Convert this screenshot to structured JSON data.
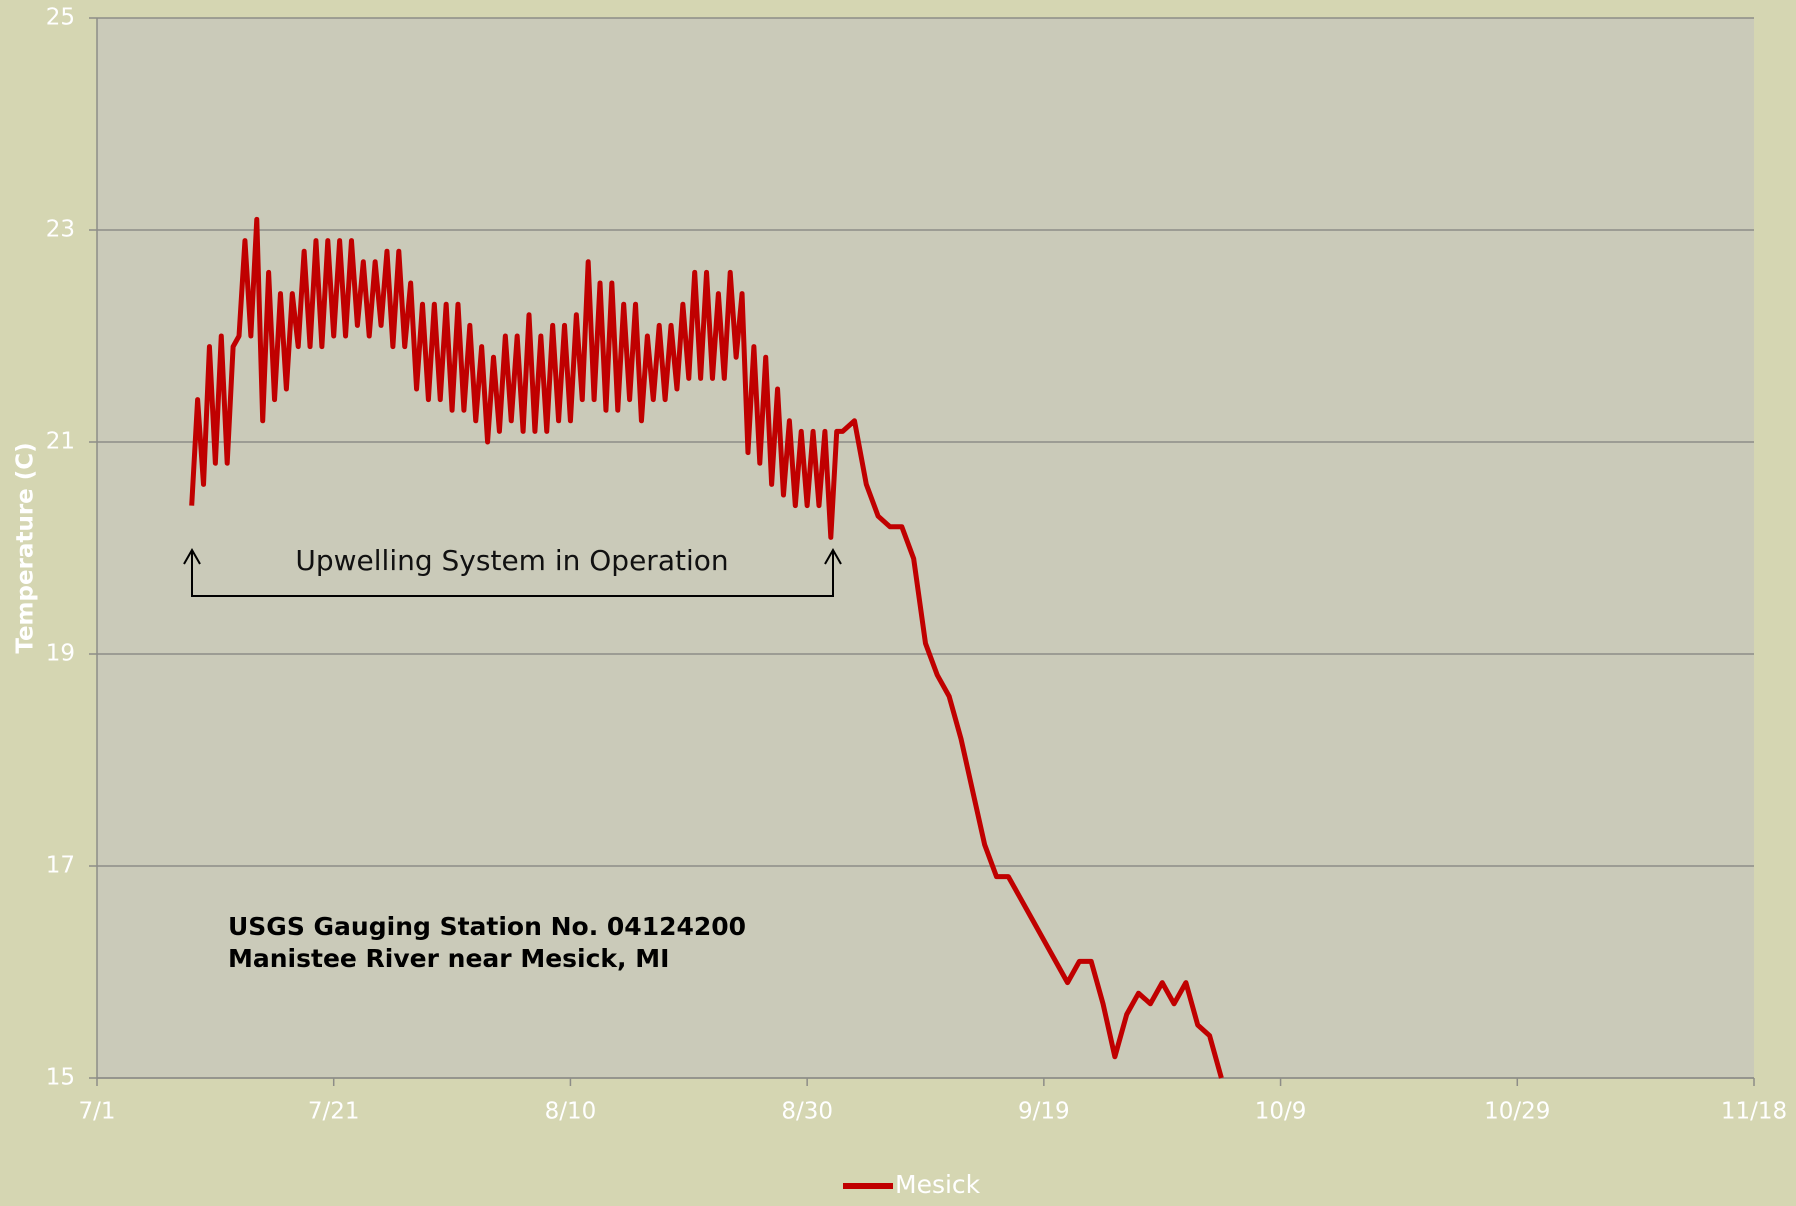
{
  "chart_data": {
    "type": "line",
    "y_label": "Temperature (C)",
    "annotations": [
      "Upwelling System in Operation",
      "USGS Gauging Station No. 04124200",
      "Manistee River near Mesick, MI"
    ],
    "xlim": [
      0,
      140
    ],
    "xticks": [
      {
        "value": 0,
        "label": "7/1"
      },
      {
        "value": 20,
        "label": "7/21"
      },
      {
        "value": 40,
        "label": "8/10"
      },
      {
        "value": 60,
        "label": "8/30"
      },
      {
        "value": 80,
        "label": "9/19"
      },
      {
        "value": 100,
        "label": "10/9"
      },
      {
        "value": 120,
        "label": "10/29"
      },
      {
        "value": 140,
        "label": "11/18"
      }
    ],
    "ylim": [
      15,
      25
    ],
    "yticks": [
      15,
      17,
      19,
      21,
      23,
      25
    ],
    "grid": true,
    "legend": "bottom",
    "x": [
      8,
      8.5,
      9,
      9.5,
      10,
      10.5,
      11,
      11.5,
      12,
      12.5,
      13,
      13.5,
      14,
      14.5,
      15,
      15.5,
      16,
      16.5,
      17,
      17.5,
      18,
      18.5,
      19,
      19.5,
      20,
      20.5,
      21,
      21.5,
      22,
      22.5,
      23,
      23.5,
      24,
      24.5,
      25,
      25.5,
      26,
      26.5,
      27,
      27.5,
      28,
      28.5,
      29,
      29.5,
      30,
      30.5,
      31,
      31.5,
      32,
      32.5,
      33,
      33.5,
      34,
      34.5,
      35,
      35.5,
      36,
      36.5,
      37,
      37.5,
      38,
      38.5,
      39,
      39.5,
      40,
      40.5,
      41,
      41.5,
      42,
      42.5,
      43,
      43.5,
      44,
      44.5,
      45,
      45.5,
      46,
      46.5,
      47,
      47.5,
      48,
      48.5,
      49,
      49.5,
      50,
      50.5,
      51,
      51.5,
      52,
      52.5,
      53,
      53.5,
      54,
      54.5,
      55,
      55.5,
      56,
      56.5,
      57,
      57.5,
      58,
      58.5,
      59,
      59.5,
      60,
      60.5,
      61,
      61.5,
      62,
      62.5,
      63,
      64,
      65,
      66,
      67,
      68,
      69,
      70,
      71,
      72,
      73,
      74,
      75,
      76,
      77,
      78,
      79,
      80,
      81,
      82,
      83,
      84,
      85,
      86,
      87,
      88,
      89,
      90,
      91,
      92,
      93,
      94,
      95
    ],
    "series": [
      {
        "name": "Mesick",
        "color": "#c00000",
        "values": [
          20.4,
          21.4,
          20.6,
          21.9,
          20.8,
          22.0,
          20.8,
          21.9,
          22.0,
          22.9,
          22.0,
          23.1,
          21.2,
          22.6,
          21.4,
          22.4,
          21.5,
          22.4,
          21.9,
          22.8,
          21.9,
          22.9,
          21.9,
          22.9,
          22.0,
          22.9,
          22.0,
          22.9,
          22.1,
          22.7,
          22.0,
          22.7,
          22.1,
          22.8,
          21.9,
          22.8,
          21.9,
          22.5,
          21.5,
          22.3,
          21.4,
          22.3,
          21.4,
          22.3,
          21.3,
          22.3,
          21.3,
          22.1,
          21.2,
          21.9,
          21.0,
          21.8,
          21.1,
          22.0,
          21.2,
          22.0,
          21.1,
          22.2,
          21.1,
          22.0,
          21.1,
          22.1,
          21.2,
          22.1,
          21.2,
          22.2,
          21.4,
          22.7,
          21.4,
          22.5,
          21.3,
          22.5,
          21.3,
          22.3,
          21.4,
          22.3,
          21.2,
          22.0,
          21.4,
          22.1,
          21.4,
          22.1,
          21.5,
          22.3,
          21.6,
          22.6,
          21.6,
          22.6,
          21.6,
          22.4,
          21.6,
          22.6,
          21.8,
          22.4,
          20.9,
          21.9,
          20.8,
          21.8,
          20.6,
          21.5,
          20.5,
          21.2,
          20.4,
          21.1,
          20.4,
          21.1,
          20.4,
          21.1,
          20.1,
          21.1,
          21.1,
          21.2,
          20.6,
          20.3,
          20.2,
          20.2,
          19.9,
          19.1,
          18.8,
          18.6,
          18.2,
          17.7,
          17.2,
          16.9,
          16.9,
          16.7,
          16.5,
          16.3,
          16.1,
          15.9,
          16.1,
          16.1,
          15.7,
          15.2,
          15.6,
          15.8,
          15.7,
          15.9,
          15.7,
          15.9,
          15.5,
          15.4,
          15.0
        ]
      }
    ]
  }
}
